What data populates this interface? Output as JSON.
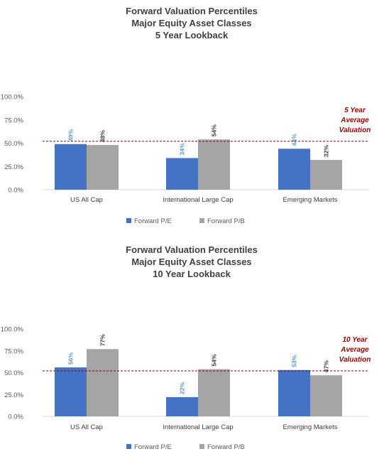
{
  "colors": {
    "pe": "#4472C4",
    "pb": "#A5A5A5",
    "pe_label": "#5B9BD5",
    "pb_label": "#404040",
    "reference_line": "#8B0000",
    "annotation": "#A00000",
    "axis": "#D9D9D9"
  },
  "chart_data": [
    {
      "type": "bar",
      "title": [
        "Forward Valuation Percentiles",
        "Major Equity Asset Classes",
        "5 Year Lookback"
      ],
      "categories": [
        "US All Cap",
        "International Large Cap",
        "Emerging Markets"
      ],
      "series": [
        {
          "name": "Forward P/E",
          "values": [
            49,
            34,
            44
          ],
          "labels": [
            "49%",
            "34%",
            "44%"
          ]
        },
        {
          "name": "Forward P/B",
          "values": [
            48,
            54,
            32
          ],
          "labels": [
            "48%",
            "54%",
            "32%"
          ]
        }
      ],
      "yticks": [
        "0.0%",
        "25.0%",
        "50.0%",
        "75.0%",
        "100.0%"
      ],
      "ylim": [
        0,
        100
      ],
      "reference_line": {
        "value": 52,
        "style": "dashed"
      },
      "annotation": [
        "5 Year",
        "Average",
        "Valuation"
      ],
      "legend": "bottom"
    },
    {
      "type": "bar",
      "title": [
        "Forward Valuation Percentiles",
        "Major Equity Asset Classes",
        "10 Year Lookback"
      ],
      "categories": [
        "US All Cap",
        "International Large Cap",
        "Emerging Markets"
      ],
      "series": [
        {
          "name": "Forward P/E",
          "values": [
            56,
            22,
            53
          ],
          "labels": [
            "56%",
            "22%",
            "53%"
          ]
        },
        {
          "name": "Forward P/B",
          "values": [
            77,
            54,
            47
          ],
          "labels": [
            "77%",
            "54%",
            "47%"
          ]
        }
      ],
      "yticks": [
        "0.0%",
        "25.0%",
        "50.0%",
        "75.0%",
        "100.0%"
      ],
      "ylim": [
        0,
        100
      ],
      "reference_line": {
        "value": 52,
        "style": "dashed"
      },
      "annotation": [
        "10 Year",
        "Average",
        "Valuation"
      ],
      "legend": "bottom"
    }
  ]
}
